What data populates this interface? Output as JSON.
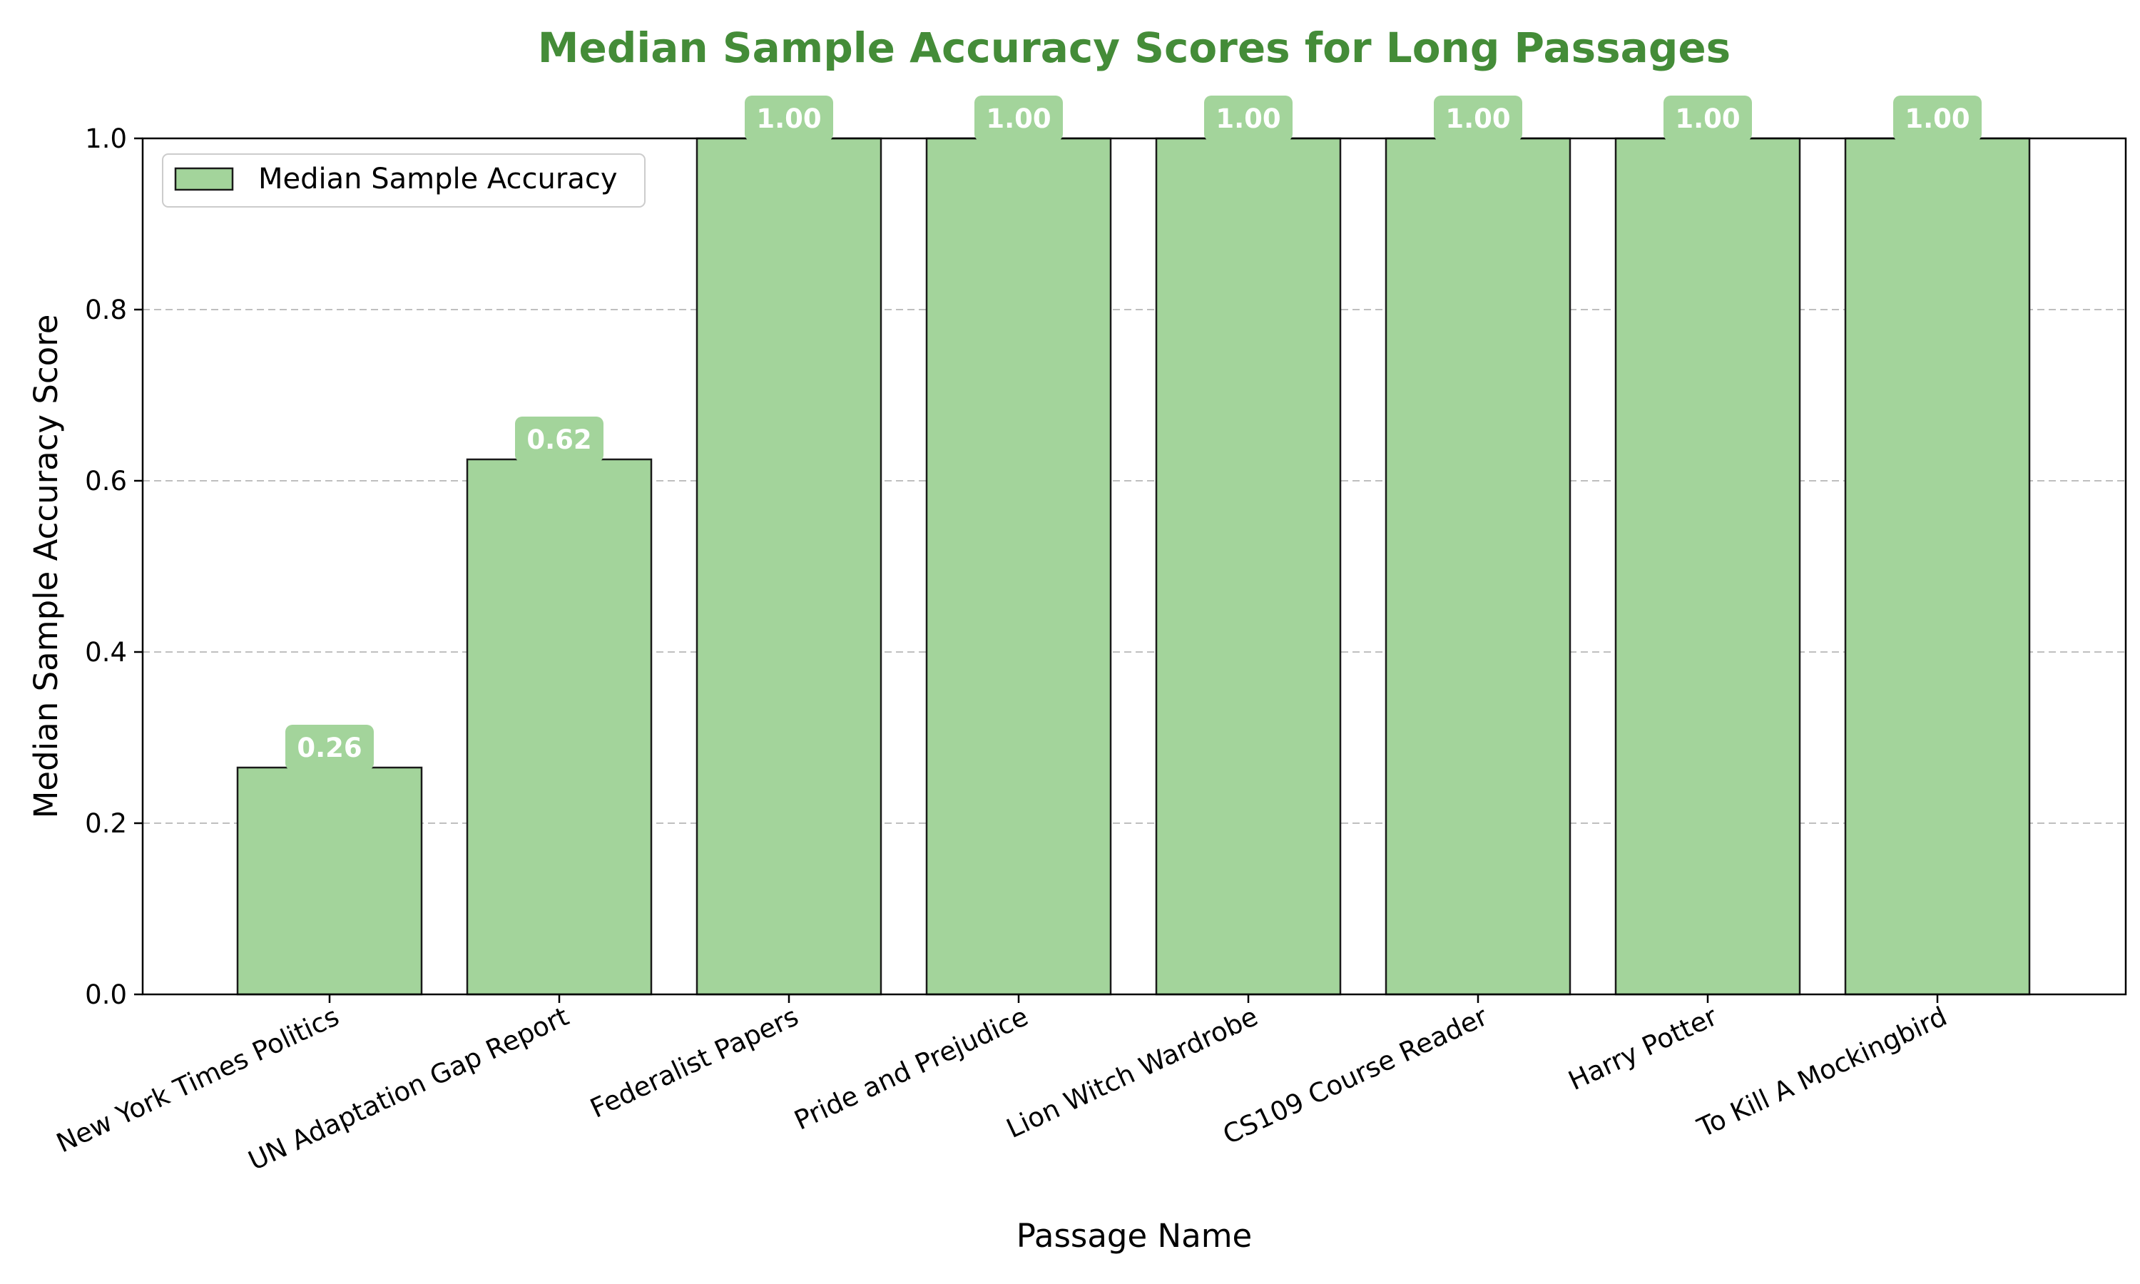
{
  "colors": {
    "bar_fill": "#a3d49b",
    "bar_edge": "#1a1a1a",
    "title": "#448c38",
    "label_box": "#a3d49b",
    "label_text": "#ffffff",
    "grid": "#bfbfbf"
  },
  "chart_data": {
    "type": "bar",
    "title": "Median Sample Accuracy Scores for Long Passages",
    "xlabel": "Passage Name",
    "ylabel": "Median Sample Accuracy Score",
    "ylim": [
      0,
      1.0
    ],
    "yticks": [
      0.0,
      0.2,
      0.4,
      0.6,
      0.8,
      1.0
    ],
    "ytick_labels": [
      "0.0",
      "0.2",
      "0.4",
      "0.6",
      "0.8",
      "1.0"
    ],
    "grid": "y-dashed",
    "legend_position": "top-left",
    "categories": [
      "New York Times Politics",
      "UN Adaptation Gap Report",
      "Federalist Papers",
      "Pride and Prejudice",
      "Lion Witch Wardrobe",
      "CS109 Course Reader",
      "Harry Potter",
      "To Kill A Mockingbird"
    ],
    "series": [
      {
        "name": "Median Sample Accuracy",
        "values": [
          0.265,
          0.625,
          1.0,
          1.0,
          1.0,
          1.0,
          1.0,
          1.0
        ],
        "labels": [
          "0.26",
          "0.62",
          "1.00",
          "1.00",
          "1.00",
          "1.00",
          "1.00",
          "1.00"
        ]
      }
    ]
  }
}
